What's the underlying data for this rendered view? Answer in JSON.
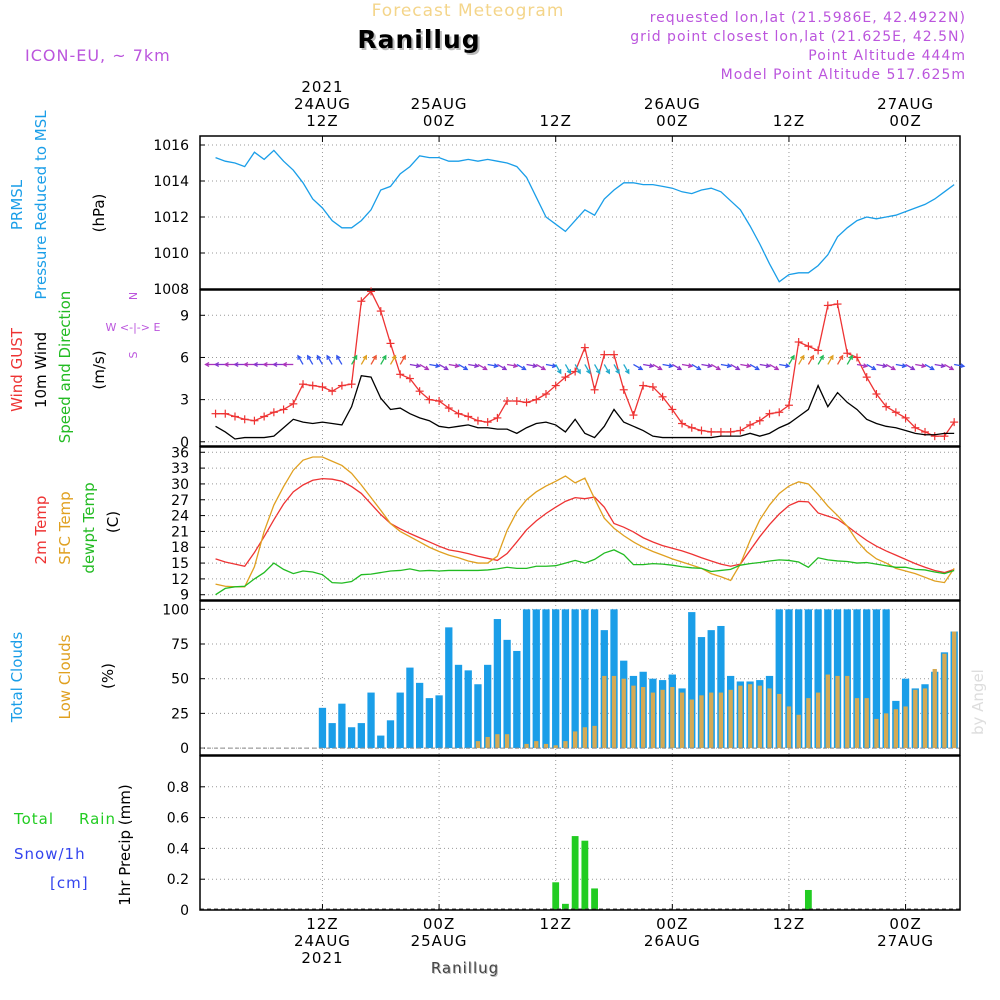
{
  "header": {
    "product": "Forecast Meteogram",
    "location": "Ranillug",
    "model": "ICON-EU, ~ 7km",
    "requested": "requested lon,lat (21.5986E, 42.4922N)",
    "gridpoint": "grid point closest lon,lat (21.625E, 42.5N)",
    "point_alt": "Point Altitude 444m",
    "model_alt": "Model Point Altitude 517.625m"
  },
  "footer": {
    "location": "Ranillug",
    "credit": "by Angel"
  },
  "time_axis": {
    "top": [
      {
        "t": 12,
        "lines": [
          "2021",
          "24AUG",
          "12Z"
        ]
      },
      {
        "t": 24,
        "lines": [
          "25AUG",
          "00Z"
        ]
      },
      {
        "t": 36,
        "lines": [
          "12Z"
        ]
      },
      {
        "t": 48,
        "lines": [
          "26AUG",
          "00Z"
        ]
      },
      {
        "t": 60,
        "lines": [
          "12Z"
        ]
      },
      {
        "t": 72,
        "lines": [
          "27AUG",
          "00Z"
        ]
      }
    ],
    "bottom": [
      {
        "t": 12,
        "lines": [
          "12Z",
          "24AUG",
          "2021"
        ]
      },
      {
        "t": 24,
        "lines": [
          "00Z",
          "25AUG"
        ]
      },
      {
        "t": 36,
        "lines": [
          "12Z"
        ]
      },
      {
        "t": 48,
        "lines": [
          "00Z",
          "26AUG"
        ]
      },
      {
        "t": 60,
        "lines": [
          "12Z"
        ]
      },
      {
        "t": 72,
        "lines": [
          "00Z",
          "27AUG"
        ]
      }
    ]
  },
  "colors": {
    "pressure": "#1a9ee8",
    "gust": "#ee3333",
    "wind": "#000000",
    "t2m": "#ee3333",
    "sfc": "#e0a020",
    "dewpt": "#22bb22",
    "total_clouds": "#1a9ee8",
    "low_clouds": "#d4aa55",
    "rain": "#22cc22",
    "snow": "#3344ee",
    "purple": "#bb55dd"
  },
  "chart_data": [
    {
      "type": "line",
      "id": "pressure",
      "label_lines": [
        "PRMSL",
        "Pressure Reduced to MSL"
      ],
      "unit": "(hPa)",
      "ylim": [
        1008,
        1016.5
      ],
      "yticks": [
        1008,
        1010,
        1012,
        1014,
        1016
      ],
      "x": [
        1,
        2,
        3,
        4,
        5,
        6,
        7,
        8,
        9,
        10,
        11,
        12,
        13,
        14,
        15,
        16,
        17,
        18,
        19,
        20,
        21,
        22,
        23,
        24,
        25,
        26,
        27,
        28,
        29,
        30,
        31,
        32,
        33,
        34,
        35,
        36,
        37,
        38,
        39,
        40,
        41,
        42,
        43,
        44,
        45,
        46,
        47,
        48,
        49,
        50,
        51,
        52,
        53,
        54,
        55,
        56,
        57,
        58,
        59,
        60,
        61,
        62,
        63,
        64,
        65,
        66,
        67,
        68,
        69,
        70,
        71,
        72,
        73,
        74,
        75,
        76,
        77
      ],
      "series": [
        {
          "values": [
            1015.3,
            1015.1,
            1015.0,
            1014.8,
            1015.6,
            1015.2,
            1015.7,
            1015.1,
            1014.6,
            1013.9,
            1013.0,
            1012.5,
            1011.8,
            1011.4,
            1011.4,
            1011.8,
            1012.4,
            1013.5,
            1013.7,
            1014.4,
            1014.8,
            1015.4,
            1015.3,
            1015.3,
            1015.1,
            1015.1,
            1015.2,
            1015.1,
            1015.2,
            1015.1,
            1015.0,
            1014.8,
            1014.2,
            1013.1,
            1012.0,
            1011.6,
            1011.2,
            1011.8,
            1012.4,
            1012.1,
            1013.0,
            1013.5,
            1013.9,
            1013.9,
            1013.8,
            1013.8,
            1013.7,
            1013.6,
            1013.4,
            1013.3,
            1013.5,
            1013.6,
            1013.4,
            1012.9,
            1012.4,
            1011.5,
            1010.5,
            1009.4,
            1008.4,
            1008.8,
            1008.9,
            1008.9,
            1009.3,
            1009.9,
            1010.9,
            1011.4,
            1011.8,
            1012.0,
            1011.9,
            1012.0,
            1012.1,
            1012.3,
            1012.5,
            1012.7,
            1013.0,
            1013.4,
            1013.8
          ]
        }
      ]
    },
    {
      "type": "line",
      "id": "wind",
      "label_lines": [
        "Wind GUST",
        "10m Wind",
        "Speed and Direction"
      ],
      "unit": "(m/s)",
      "compass": [
        "W <-|-> E",
        "N",
        "S"
      ],
      "ylim": [
        -0.3,
        10.8
      ],
      "yticks": [
        0,
        3,
        6,
        9
      ],
      "x": [
        1,
        2,
        3,
        4,
        5,
        6,
        7,
        8,
        9,
        10,
        11,
        12,
        13,
        14,
        15,
        16,
        17,
        18,
        19,
        20,
        21,
        22,
        23,
        24,
        25,
        26,
        27,
        28,
        29,
        30,
        31,
        32,
        33,
        34,
        35,
        36,
        37,
        38,
        39,
        40,
        41,
        42,
        43,
        44,
        45,
        46,
        47,
        48,
        49,
        50,
        51,
        52,
        53,
        54,
        55,
        56,
        57,
        58,
        59,
        60,
        61,
        62,
        63,
        64,
        65,
        66,
        67,
        68,
        69,
        70,
        71,
        72,
        73,
        74,
        75,
        76,
        77
      ],
      "series": [
        {
          "name": "gust",
          "values": [
            2.0,
            2.0,
            1.8,
            1.6,
            1.5,
            1.8,
            2.1,
            2.3,
            2.7,
            4.1,
            4.0,
            3.9,
            3.6,
            4.0,
            4.1,
            10.0,
            10.7,
            9.3,
            7.0,
            4.8,
            4.5,
            3.6,
            3.0,
            2.9,
            2.4,
            2.0,
            1.8,
            1.5,
            1.4,
            1.7,
            2.9,
            2.9,
            2.8,
            3.0,
            3.4,
            4.0,
            4.6,
            5.0,
            6.7,
            3.7,
            6.2,
            6.2,
            3.7,
            1.9,
            4.0,
            3.9,
            3.2,
            2.3,
            1.3,
            1.0,
            0.8,
            0.7,
            0.7,
            0.7,
            0.8,
            1.2,
            1.5,
            2.0,
            2.1,
            2.6,
            7.1,
            6.8,
            6.5,
            9.7,
            9.8,
            6.3,
            6.0,
            4.6,
            3.4,
            2.5,
            2.1,
            1.7,
            1.0,
            0.7,
            0.4,
            0.4,
            1.4
          ]
        },
        {
          "name": "wind",
          "values": [
            1.1,
            0.7,
            0.2,
            0.3,
            0.3,
            0.3,
            0.4,
            1.0,
            1.6,
            1.4,
            1.3,
            1.4,
            1.3,
            1.2,
            2.5,
            4.7,
            4.6,
            3.1,
            2.3,
            2.4,
            2.0,
            1.7,
            1.5,
            1.1,
            1.0,
            1.1,
            1.2,
            1.0,
            1.0,
            0.9,
            0.9,
            0.6,
            1.0,
            1.3,
            1.4,
            1.2,
            0.7,
            1.6,
            0.6,
            0.3,
            1.1,
            2.3,
            1.4,
            1.1,
            0.8,
            0.4,
            0.3,
            0.3,
            0.3,
            0.3,
            0.3,
            0.3,
            0.4,
            0.4,
            0.4,
            0.6,
            0.4,
            0.6,
            1.0,
            1.3,
            1.8,
            2.3,
            4.0,
            2.5,
            3.5,
            2.8,
            2.3,
            1.6,
            1.3,
            1.1,
            1.0,
            0.8,
            0.6,
            0.5,
            0.5,
            0.6,
            0.6
          ]
        }
      ]
    },
    {
      "type": "line",
      "id": "temperature",
      "label_lines": [
        "2m Temp",
        "SFC Temp",
        "dewpt Temp"
      ],
      "unit": "(C)",
      "ylim": [
        8,
        37
      ],
      "yticks": [
        9,
        12,
        15,
        18,
        21,
        24,
        27,
        30,
        33,
        36
      ],
      "x": [
        1,
        2,
        3,
        4,
        5,
        6,
        7,
        8,
        9,
        10,
        11,
        12,
        13,
        14,
        15,
        16,
        17,
        18,
        19,
        20,
        21,
        22,
        23,
        24,
        25,
        26,
        27,
        28,
        29,
        30,
        31,
        32,
        33,
        34,
        35,
        36,
        37,
        38,
        39,
        40,
        41,
        42,
        43,
        44,
        45,
        46,
        47,
        48,
        49,
        50,
        51,
        52,
        53,
        54,
        55,
        56,
        57,
        58,
        59,
        60,
        61,
        62,
        63,
        64,
        65,
        66,
        67,
        68,
        69,
        70,
        71,
        72,
        73,
        74,
        75,
        76,
        77
      ],
      "series": [
        {
          "name": "2m Temp",
          "values": [
            15.8,
            15.2,
            14.8,
            14.4,
            17.0,
            20.0,
            23.2,
            26.2,
            28.5,
            29.8,
            30.7,
            31.0,
            30.9,
            30.5,
            29.5,
            28.2,
            26.2,
            24.2,
            22.5,
            21.5,
            20.6,
            19.8,
            19.0,
            18.2,
            17.5,
            17.2,
            16.8,
            16.3,
            15.9,
            15.5,
            16.8,
            19.0,
            21.3,
            23.0,
            24.4,
            25.6,
            26.7,
            27.4,
            27.2,
            27.5,
            25.6,
            22.5,
            21.8,
            20.9,
            19.8,
            19.0,
            18.3,
            17.8,
            17.3,
            16.7,
            16.0,
            15.4,
            14.8,
            14.4,
            14.8,
            17.4,
            20.0,
            22.3,
            24.3,
            25.9,
            26.7,
            26.6,
            24.5,
            23.9,
            23.3,
            22.0,
            20.6,
            19.3,
            18.2,
            17.3,
            16.5,
            15.7,
            14.9,
            14.2,
            13.6,
            13.2,
            13.8
          ]
        },
        {
          "name": "SFC Temp",
          "values": [
            11.0,
            10.6,
            10.5,
            10.5,
            14.3,
            21.0,
            26.0,
            29.5,
            32.6,
            34.5,
            35.1,
            35.1,
            34.3,
            33.5,
            32.0,
            29.8,
            27.4,
            25.0,
            22.5,
            21.0,
            20.0,
            19.0,
            18.0,
            17.2,
            16.5,
            16.0,
            15.4,
            15.0,
            15.0,
            16.3,
            21.2,
            24.7,
            27.0,
            28.5,
            29.6,
            30.5,
            31.5,
            30.2,
            31.1,
            27.2,
            23.5,
            21.6,
            20.2,
            19.0,
            18.0,
            17.2,
            16.5,
            15.8,
            15.2,
            14.6,
            14.0,
            13.0,
            12.4,
            11.7,
            14.8,
            19.3,
            23.2,
            26.0,
            28.2,
            29.6,
            30.4,
            30.0,
            28.0,
            25.8,
            24.0,
            22.0,
            19.2,
            17.2,
            15.8,
            15.0,
            14.0,
            13.5,
            13.0,
            12.3,
            11.6,
            11.3,
            14.0
          ]
        },
        {
          "name": "dewpt Temp",
          "values": [
            9.0,
            10.2,
            10.5,
            10.6,
            12.0,
            13.2,
            15.0,
            13.8,
            13.0,
            13.5,
            13.3,
            12.8,
            11.3,
            11.2,
            11.5,
            12.8,
            12.9,
            13.2,
            13.5,
            13.6,
            13.9,
            13.5,
            13.6,
            13.5,
            13.6,
            13.6,
            13.6,
            13.6,
            13.7,
            13.9,
            14.2,
            14.0,
            14.0,
            14.4,
            14.4,
            14.5,
            15.0,
            15.5,
            15.0,
            15.7,
            16.9,
            17.5,
            16.6,
            14.7,
            14.7,
            14.9,
            14.8,
            14.6,
            14.3,
            14.1,
            14.0,
            13.4,
            13.6,
            13.8,
            14.6,
            14.9,
            15.1,
            15.4,
            15.6,
            15.5,
            15.2,
            14.2,
            16.0,
            15.6,
            15.4,
            15.3,
            15.0,
            15.1,
            14.8,
            14.5,
            14.2,
            14.2,
            13.8,
            13.7,
            13.3,
            13.0,
            13.6
          ]
        }
      ]
    },
    {
      "type": "bar",
      "id": "clouds",
      "label_lines": [
        "Total Clouds",
        "Low Clouds"
      ],
      "unit": "(%)",
      "ylim": [
        -5,
        106
      ],
      "yticks": [
        0,
        25,
        50,
        75,
        100
      ],
      "x": [
        1,
        2,
        3,
        4,
        5,
        6,
        7,
        8,
        9,
        10,
        11,
        12,
        13,
        14,
        15,
        16,
        17,
        18,
        19,
        20,
        21,
        22,
        23,
        24,
        25,
        26,
        27,
        28,
        29,
        30,
        31,
        32,
        33,
        34,
        35,
        36,
        37,
        38,
        39,
        40,
        41,
        42,
        43,
        44,
        45,
        46,
        47,
        48,
        49,
        50,
        51,
        52,
        53,
        54,
        55,
        56,
        57,
        58,
        59,
        60,
        61,
        62,
        63,
        64,
        65,
        66,
        67,
        68,
        69,
        70,
        71,
        72,
        73,
        74,
        75,
        76,
        77
      ],
      "series": [
        {
          "name": "Total Clouds",
          "values": [
            0,
            0,
            0,
            0,
            0,
            0,
            0,
            0,
            0,
            0,
            0,
            29,
            18,
            32,
            15,
            18,
            40,
            9,
            20,
            40,
            58,
            47,
            36,
            38,
            87,
            60,
            56,
            46,
            60,
            93,
            78,
            70,
            100,
            100,
            100,
            100,
            100,
            100,
            100,
            100,
            85,
            100,
            63,
            52,
            55,
            50,
            49,
            53,
            43,
            98,
            80,
            85,
            88,
            52,
            48,
            48,
            49,
            52,
            100,
            100,
            100,
            100,
            100,
            100,
            100,
            100,
            100,
            100,
            100,
            100,
            34,
            50,
            43,
            46,
            55,
            69,
            84
          ]
        },
        {
          "name": "Low Clouds",
          "values": [
            0,
            0,
            0,
            0,
            0,
            0,
            0,
            0,
            0,
            0,
            0,
            0,
            0,
            0,
            0,
            0,
            0,
            0,
            0,
            0,
            0,
            0,
            0,
            0,
            0,
            0,
            0,
            5,
            8,
            10,
            10,
            0,
            3,
            5,
            3,
            2,
            5,
            12,
            15,
            16,
            52,
            52,
            50,
            45,
            44,
            40,
            42,
            44,
            40,
            35,
            38,
            40,
            40,
            42,
            45,
            46,
            45,
            43,
            39,
            30,
            24,
            36,
            40,
            53,
            52,
            52,
            36,
            36,
            21,
            25,
            28,
            30,
            42,
            43,
            57,
            68,
            84
          ]
        }
      ]
    },
    {
      "type": "bar",
      "id": "precip",
      "label_lines": [
        "Total",
        "Rain",
        "Snow/1h",
        "[cm]"
      ],
      "axis_label": "1hr Precip (mm)",
      "ylim": [
        0,
        1.0
      ],
      "yticks": [
        0,
        0.2,
        0.4,
        0.6,
        0.8
      ],
      "x": [
        36,
        37,
        38,
        39,
        40,
        62
      ],
      "series": [
        {
          "name": "Total Rain",
          "values": [
            0.18,
            0.04,
            0.48,
            0.45,
            0.14,
            0.13
          ]
        }
      ]
    }
  ]
}
